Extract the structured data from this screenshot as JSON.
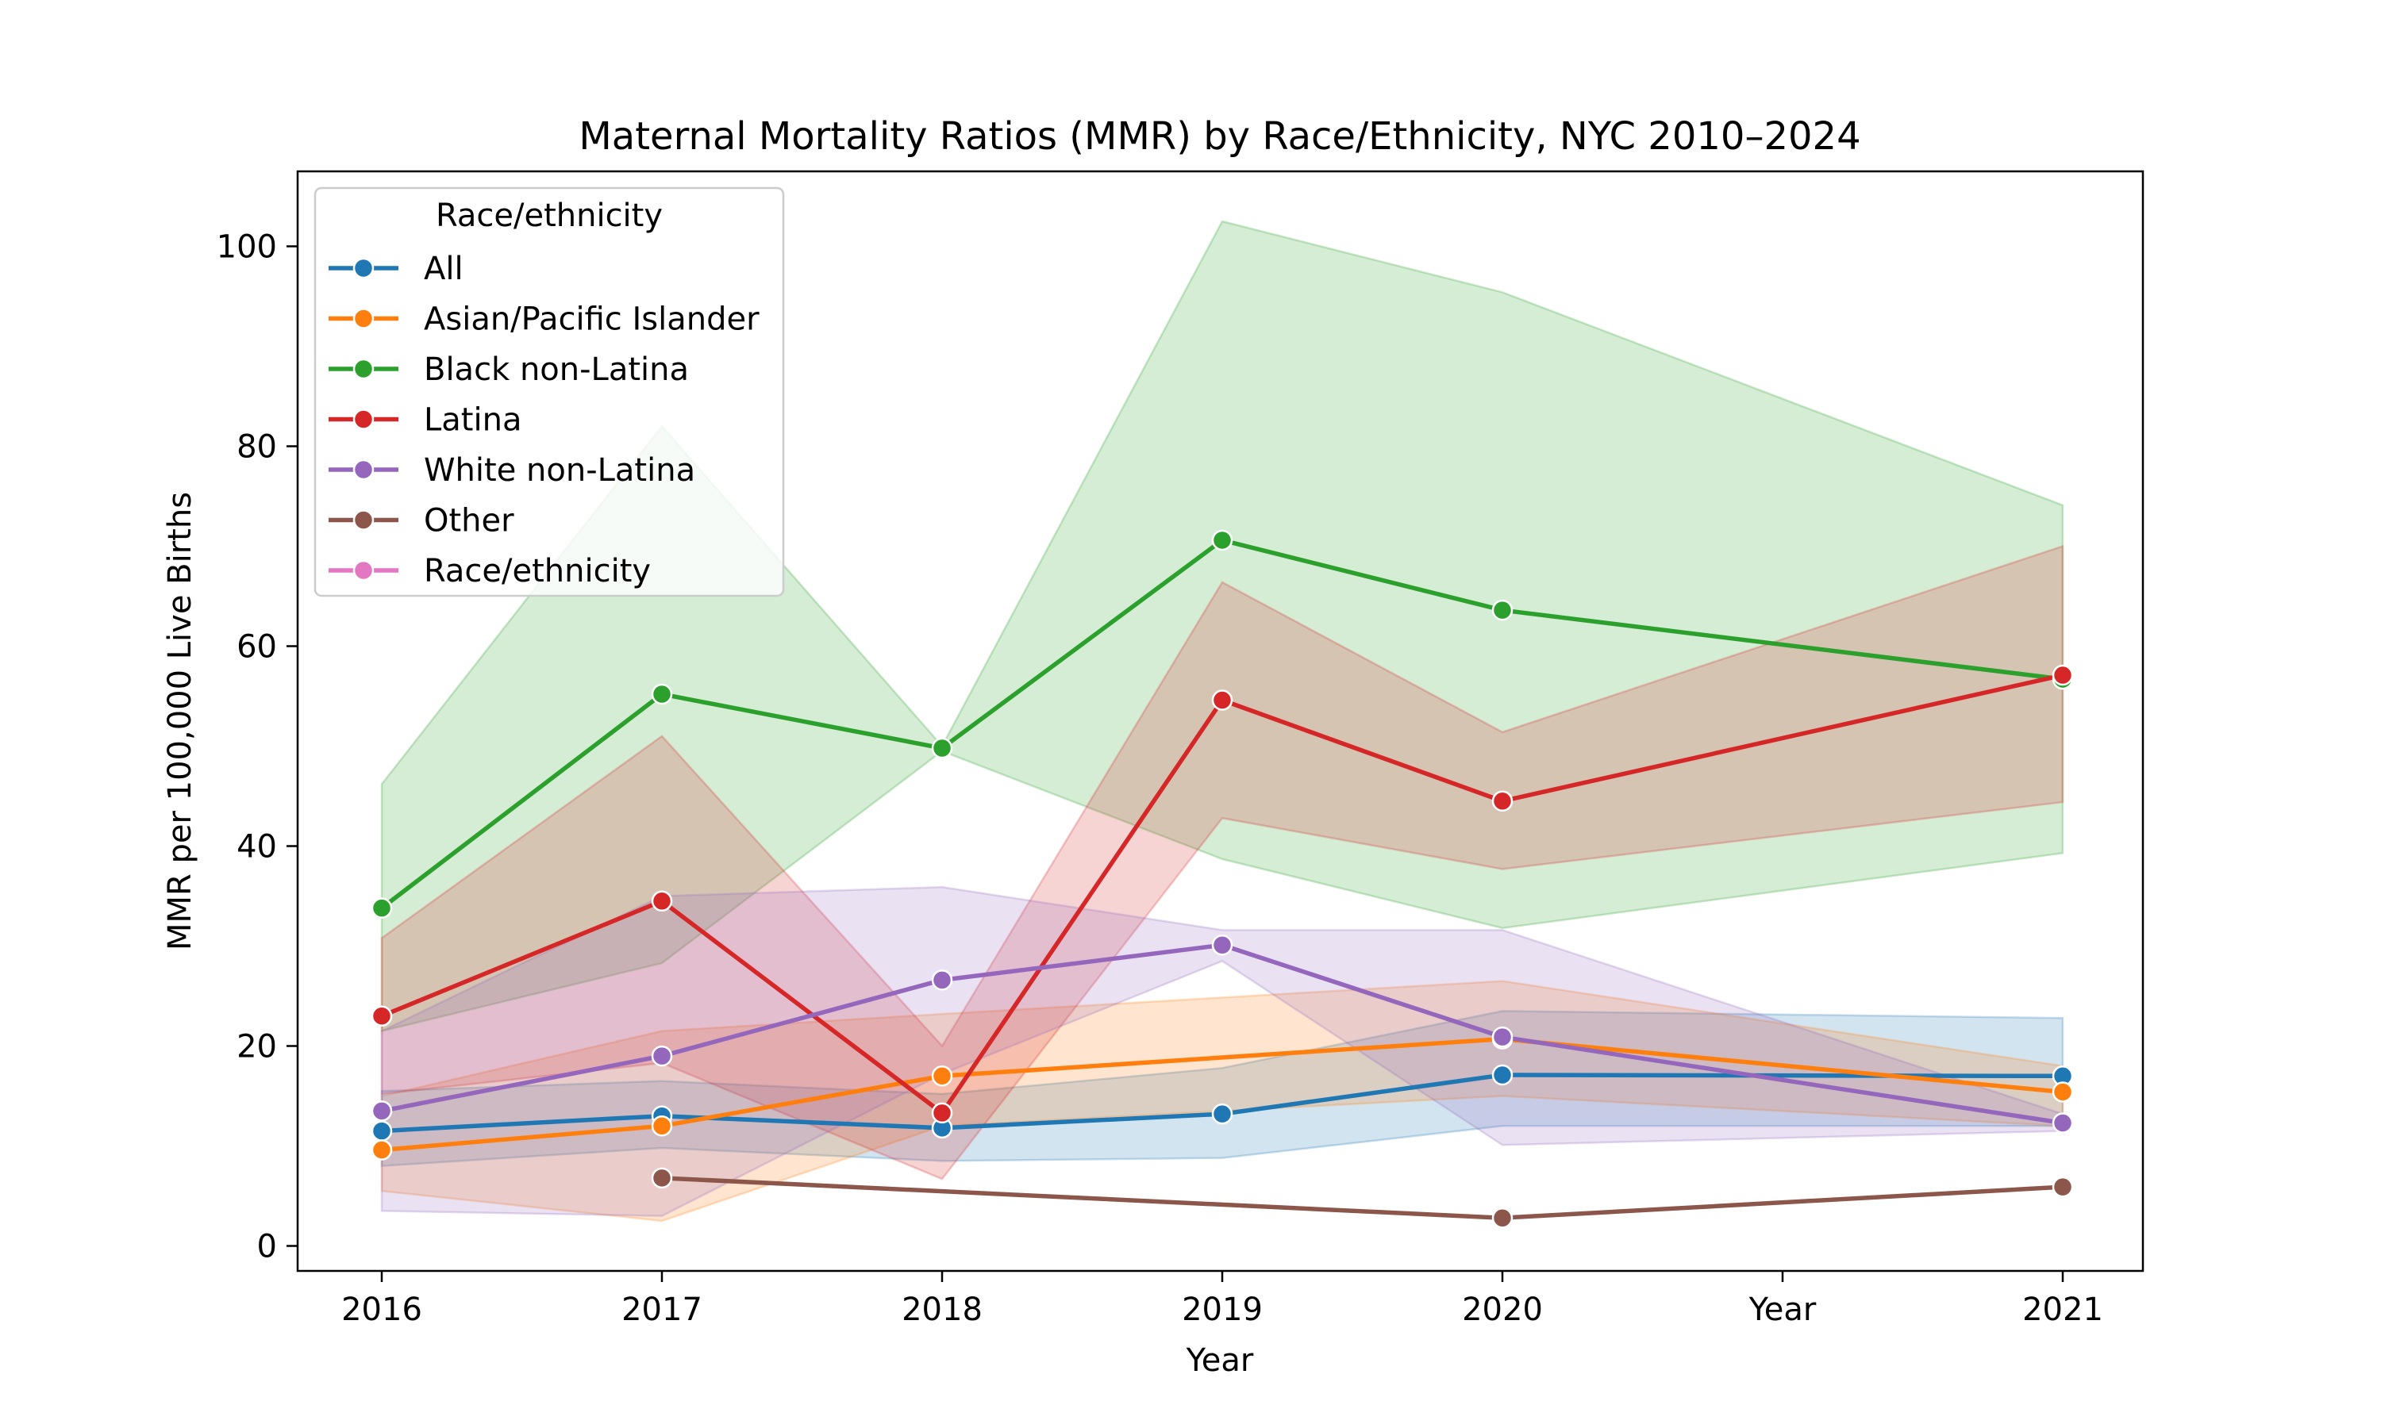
{
  "chart_data": {
    "type": "line",
    "title": "Maternal Mortality Ratios (MMR) by Race/Ethnicity, NYC 2010–2024",
    "xlabel": "Year",
    "ylabel": "MMR per 100,000 Live Births",
    "categories": [
      "2016",
      "2017",
      "2018",
      "2019",
      "2020",
      "Year",
      "2021"
    ],
    "y_ticks": [
      0,
      20,
      40,
      60,
      80,
      100
    ],
    "ylim": [
      -2.5,
      107.5
    ],
    "grid": false,
    "legend": {
      "title": "Race/ethnicity",
      "placement": "top-left",
      "entries": [
        "All",
        "Asian/Pacific Islander",
        "Black non-Latina",
        "Latina",
        "White non-Latina",
        "Other",
        "Race/ethnicity"
      ]
    },
    "series": [
      {
        "name": "All",
        "color": "#1f77b4",
        "points": [
          {
            "x": "2016",
            "y": 11.5,
            "lo": 8,
            "hi": 15.5
          },
          {
            "x": "2017",
            "y": 13.0,
            "lo": 9.8,
            "hi": 16.5
          },
          {
            "x": "2018",
            "y": 11.8,
            "lo": 8.5,
            "hi": 15.2
          },
          {
            "x": "2019",
            "y": 13.2,
            "lo": 8.8,
            "hi": 17.8
          },
          {
            "x": "2020",
            "y": 17.1,
            "lo": 12,
            "hi": 23.5
          },
          {
            "x": "2021",
            "y": 17.0,
            "lo": 12,
            "hi": 22.8
          }
        ]
      },
      {
        "name": "Asian/Pacific Islander",
        "color": "#ff7f0e",
        "points": [
          {
            "x": "2016",
            "y": 9.6,
            "lo": 5.5,
            "hi": 15
          },
          {
            "x": "2017",
            "y": 12.0,
            "lo": 2.5,
            "hi": 21.5
          },
          {
            "x": "2018",
            "y": 17.0,
            "lo": 12,
            "hi": 23.2
          },
          {
            "x": "2020",
            "y": 20.7,
            "lo": 15,
            "hi": 26.5
          },
          {
            "x": "2021",
            "y": 15.4,
            "lo": 12,
            "hi": 18
          }
        ]
      },
      {
        "name": "Black non-Latina",
        "color": "#2ca02c",
        "points": [
          {
            "x": "2016",
            "y": 33.8,
            "lo": 21.5,
            "hi": 46.2
          },
          {
            "x": "2017",
            "y": 55.2,
            "lo": 28.3,
            "hi": 82.0
          },
          {
            "x": "2018",
            "y": 49.8,
            "lo": 49.5,
            "hi": 50.0
          },
          {
            "x": "2019",
            "y": 70.6,
            "lo": 38.7,
            "hi": 102.5
          },
          {
            "x": "2020",
            "y": 63.6,
            "lo": 31.8,
            "hi": 95.4
          },
          {
            "x": "2021",
            "y": 56.7,
            "lo": 39.3,
            "hi": 74.1
          }
        ]
      },
      {
        "name": "Latina",
        "color": "#d62728",
        "points": [
          {
            "x": "2016",
            "y": 23.0,
            "lo": 15.2,
            "hi": 30.8
          },
          {
            "x": "2017",
            "y": 34.5,
            "lo": 18.3,
            "hi": 51.0
          },
          {
            "x": "2018",
            "y": 13.3,
            "lo": 6.7,
            "hi": 20.0
          },
          {
            "x": "2019",
            "y": 54.6,
            "lo": 42.8,
            "hi": 66.4
          },
          {
            "x": "2020",
            "y": 44.5,
            "lo": 37.7,
            "hi": 51.4
          },
          {
            "x": "2021",
            "y": 57.1,
            "lo": 44.4,
            "hi": 70.0
          }
        ]
      },
      {
        "name": "White non-Latina",
        "color": "#9467bd",
        "points": [
          {
            "x": "2016",
            "y": 13.5,
            "lo": 3.5,
            "hi": 21.5
          },
          {
            "x": "2017",
            "y": 19.0,
            "lo": 3.0,
            "hi": 35.0
          },
          {
            "x": "2018",
            "y": 26.6,
            "lo": 17.2,
            "hi": 35.9
          },
          {
            "x": "2019",
            "y": 30.1,
            "lo": 28.5,
            "hi": 31.6
          },
          {
            "x": "2020",
            "y": 20.9,
            "lo": 10.1,
            "hi": 31.6
          },
          {
            "x": "2021",
            "y": 12.3,
            "lo": 11.5,
            "hi": 13.2
          }
        ]
      },
      {
        "name": "Other",
        "color": "#8c564b",
        "points": [
          {
            "x": "2017",
            "y": 6.8
          },
          {
            "x": "2020",
            "y": 2.8
          },
          {
            "x": "2021",
            "y": 5.9
          }
        ]
      },
      {
        "name": "Race/ethnicity",
        "color": "#e377c2",
        "points": []
      }
    ]
  }
}
